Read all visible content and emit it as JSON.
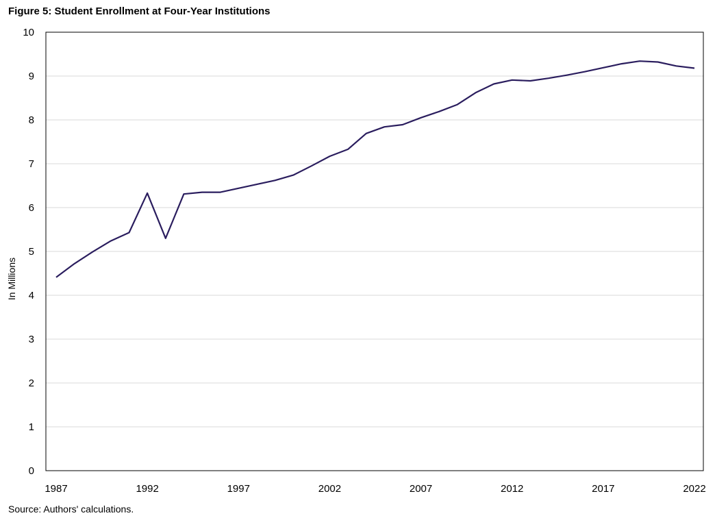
{
  "title": "Figure 5: Student Enrollment at Four-Year Institutions",
  "source": "Source: Authors' calculations.",
  "chart_data": {
    "type": "line",
    "title": "Figure 5: Student Enrollment at Four-Year Institutions",
    "xlabel": "",
    "ylabel": "In Millions",
    "ylim": [
      0,
      10
    ],
    "xlim": [
      1987,
      2022
    ],
    "yticks": [
      "0",
      "1",
      "2",
      "3",
      "4",
      "5",
      "6",
      "7",
      "8",
      "9",
      "10"
    ],
    "xticks": [
      "1987",
      "1992",
      "1997",
      "2002",
      "2007",
      "2012",
      "2017",
      "2022"
    ],
    "grid": "horizontal",
    "line_color": "#2a1d5e",
    "x": [
      1987,
      1988,
      1989,
      1990,
      1991,
      1992,
      1993,
      1994,
      1995,
      1996,
      1997,
      1998,
      1999,
      2000,
      2001,
      2002,
      2003,
      2004,
      2005,
      2006,
      2007,
      2008,
      2009,
      2010,
      2011,
      2012,
      2013,
      2014,
      2015,
      2016,
      2017,
      2018,
      2019,
      2020,
      2021,
      2022
    ],
    "series": [
      {
        "values": [
          4.41,
          4.72,
          4.99,
          5.24,
          5.43,
          6.33,
          5.3,
          6.31,
          6.35,
          6.35,
          6.44,
          6.53,
          6.62,
          6.74,
          6.95,
          7.17,
          7.33,
          7.69,
          7.84,
          7.89,
          8.05,
          8.19,
          8.35,
          8.62,
          8.82,
          8.91,
          8.89,
          8.95,
          9.02,
          9.1,
          9.19,
          9.28,
          9.34,
          9.32,
          9.23,
          9.18
        ]
      }
    ]
  }
}
